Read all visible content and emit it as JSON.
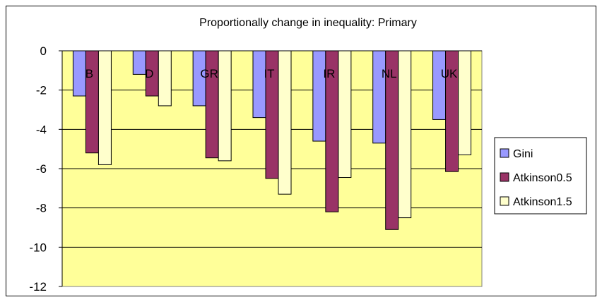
{
  "chart_data": {
    "type": "bar",
    "title": "Proportionally change in inequality: Primary",
    "xlabel": "",
    "ylabel": "",
    "categories": [
      "B",
      "D",
      "GR",
      "IT",
      "IR",
      "NL",
      "UK"
    ],
    "series": [
      {
        "name": "Gini",
        "values": [
          -2.3,
          -1.2,
          -2.8,
          -3.4,
          -4.6,
          -4.7,
          -3.5
        ]
      },
      {
        "name": "Atkinson0.5",
        "values": [
          -5.2,
          -2.3,
          -5.45,
          -6.5,
          -8.2,
          -9.1,
          -6.15
        ]
      },
      {
        "name": "Atkinson1.5",
        "values": [
          -5.8,
          -2.8,
          -5.6,
          -7.3,
          -6.45,
          -8.5,
          -5.3
        ]
      }
    ],
    "ylim": [
      -12,
      0
    ],
    "yticks": [
      0,
      -2,
      -4,
      -6,
      -8,
      -10,
      -12
    ],
    "grid": true,
    "legend_position": "right",
    "colors": {
      "plot_background": "#ffff99",
      "series": [
        "#9999ff",
        "#993366",
        "#ffffcc"
      ],
      "gridline": "#000000"
    }
  }
}
